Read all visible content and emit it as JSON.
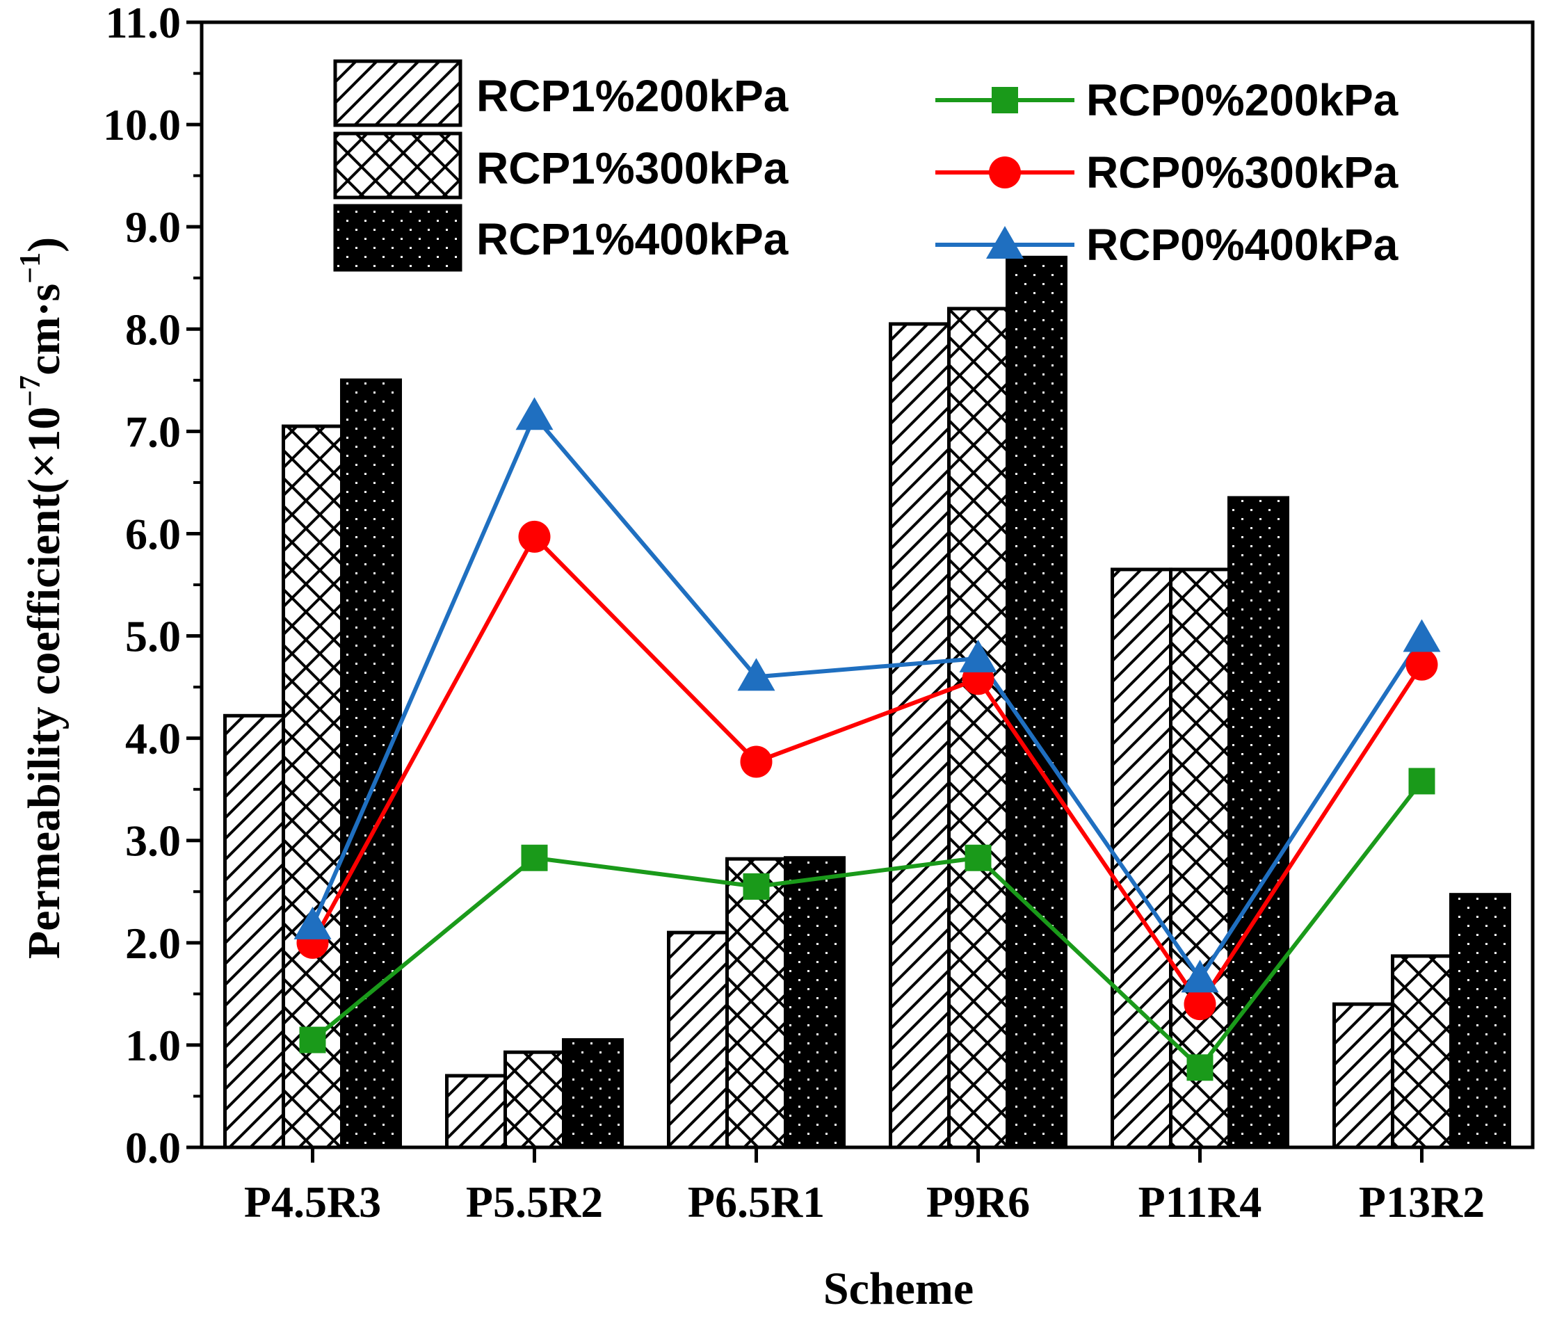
{
  "chart_data": {
    "type": "bar",
    "title": "",
    "xlabel": "Scheme",
    "ylabel": {
      "main": "Permeability coefficient(×10",
      "exp1": "−7",
      "mid": "cm·s",
      "exp2": "−1",
      "end": ")"
    },
    "ylim": [
      0,
      11
    ],
    "yticks": [
      "0.0",
      "1.0",
      "2.0",
      "3.0",
      "4.0",
      "5.0",
      "6.0",
      "7.0",
      "8.0",
      "9.0",
      "10.0",
      "11.0"
    ],
    "categories": [
      "P4.5R3",
      "P5.5R2",
      "P6.5R1",
      "P9R6",
      "P11R4",
      "P13R2"
    ],
    "bar_series": [
      {
        "name": "RCP1%200kPa",
        "pattern": "diagonal-hatch",
        "values": [
          4.22,
          0.7,
          2.1,
          8.05,
          5.65,
          1.4
        ]
      },
      {
        "name": "RCP1%300kPa",
        "pattern": "cross-hatch",
        "values": [
          7.05,
          0.93,
          2.82,
          8.2,
          5.65,
          1.87
        ]
      },
      {
        "name": "RCP1%400kPa",
        "pattern": "black-dotted",
        "values": [
          7.5,
          1.05,
          2.83,
          8.7,
          6.35,
          2.47
        ]
      }
    ],
    "line_series": [
      {
        "name": "RCP0%200kPa",
        "marker": "square",
        "color": "#1a9a1a",
        "values": [
          1.05,
          2.83,
          2.55,
          2.83,
          0.78,
          3.58
        ]
      },
      {
        "name": "RCP0%300kPa",
        "marker": "circle",
        "color": "#ff0000",
        "values": [
          2.0,
          5.97,
          3.77,
          4.58,
          1.4,
          4.72
        ]
      },
      {
        "name": "RCP0%400kPa",
        "marker": "triangle",
        "color": "#1f6fc0",
        "values": [
          2.17,
          7.15,
          4.6,
          4.78,
          1.65,
          4.98
        ]
      }
    ],
    "legend": {
      "position": "top",
      "bar_column": "left",
      "line_column": "right"
    }
  }
}
